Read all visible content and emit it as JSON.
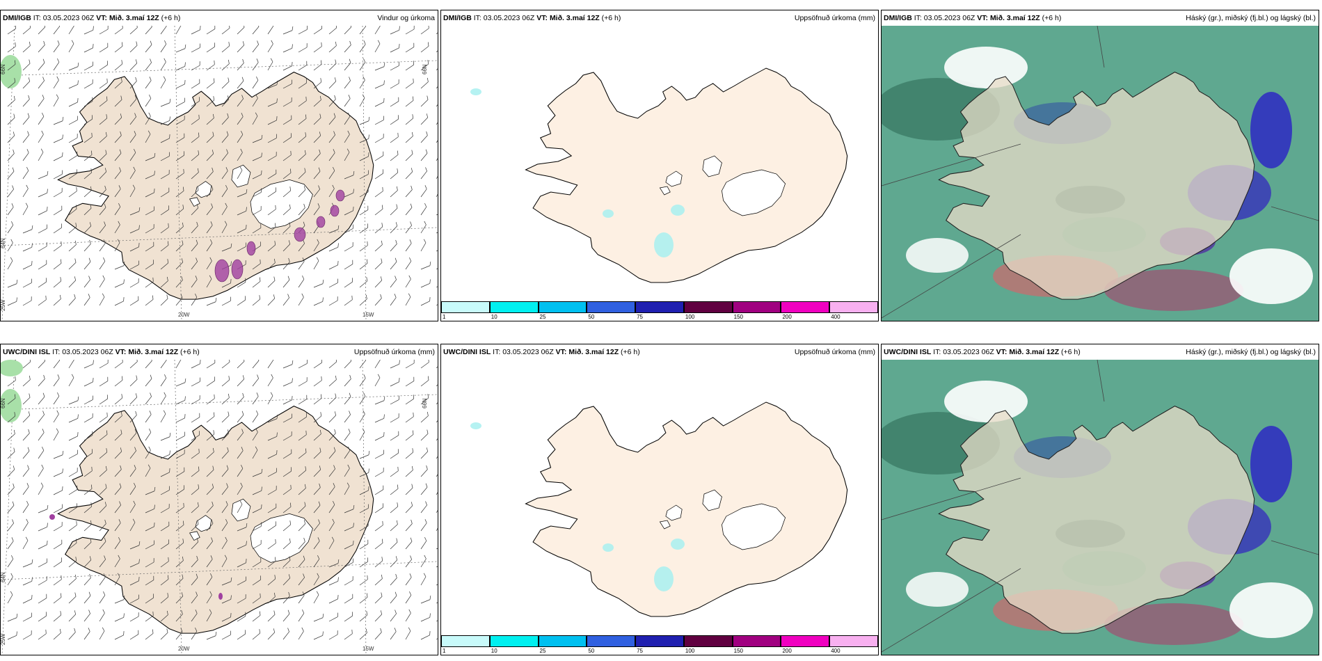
{
  "panels": [
    {
      "source": "DMI/IGB",
      "it_label": "IT:",
      "it": "03.05.2023 06Z",
      "vt_label": "VT:",
      "vt": "Mið. 3.maí 12Z",
      "lead": "(+6 h)",
      "title": "Vindur og úrkoma"
    },
    {
      "source": "DMI/IGB",
      "it_label": "IT:",
      "it": "03.05.2023 06Z",
      "vt_label": "VT:",
      "vt": "Mið. 3.maí 12Z",
      "lead": "(+6 h)",
      "title": "Uppsöfnuð úrkoma (mm)"
    },
    {
      "source": "DMI/IGB",
      "it_label": "IT:",
      "it": "03.05.2023 06Z",
      "vt_label": "VT:",
      "vt": "Mið. 3.maí 12Z",
      "lead": "(+6 h)",
      "title": "Háský (gr.), miðský (fj.bl.) og lágský (bl.)"
    },
    {
      "source": "UWC/DINI ISL",
      "it_label": "IT:",
      "it": "03.05.2023 06Z",
      "vt_label": "VT:",
      "vt": "Mið. 3.maí 12Z",
      "lead": "(+6 h)",
      "title": "Uppsöfnuð úrkoma (mm)"
    },
    {
      "source": "UWC/DINI ISL",
      "it_label": "IT:",
      "it": "03.05.2023 06Z",
      "vt_label": "VT:",
      "vt": "Mið. 3.maí 12Z",
      "lead": "(+6 h)",
      "title": "Uppsöfnuð úrkoma (mm)"
    },
    {
      "source": "UWC/DINI ISL",
      "it_label": "IT:",
      "it": "03.05.2023 06Z",
      "vt_label": "VT:",
      "vt": "Mið. 3.maí 12Z",
      "lead": "(+6 h)",
      "title": "Háský (gr.), miðský (fj.bl.) og lágský (bl.)"
    }
  ],
  "grid_labels": {
    "lat66": "66N",
    "lat64": "64N",
    "lon20": "20W",
    "lon15": "15W",
    "lon25": "25W"
  },
  "colorbar": {
    "ticks": [
      "1",
      "10",
      "25",
      "50",
      "75",
      "100",
      "150",
      "200",
      "400"
    ],
    "colors": [
      "#c8fafa",
      "#00f0f0",
      "#00c0f0",
      "#3060e0",
      "#2020b0",
      "#600040",
      "#a00080",
      "#f000c0",
      "#f8b0f0"
    ]
  },
  "colors": {
    "land": "#f0e2d2",
    "land_light": "#fdf0e3",
    "glacier": "#ffffff",
    "precip_purple": "#a040a0"
  }
}
